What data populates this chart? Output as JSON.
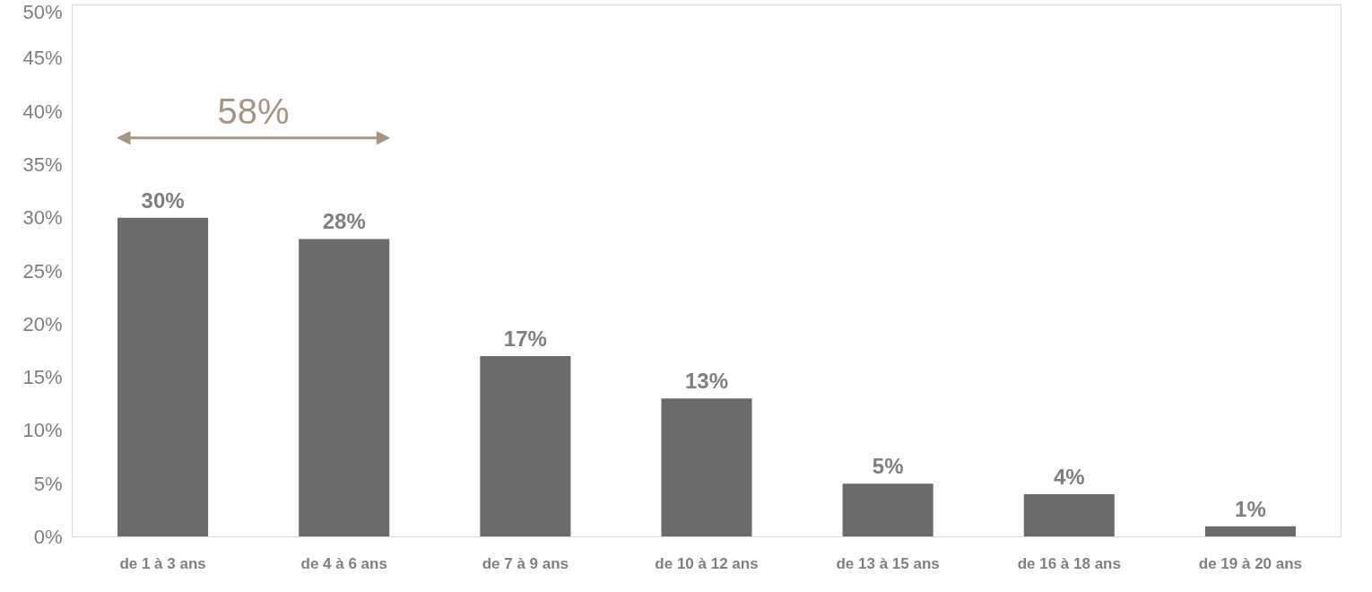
{
  "chart_data": {
    "type": "bar",
    "categories": [
      "de 1 à 3 ans",
      "de 4 à 6 ans",
      "de 7 à 9 ans",
      "de 10 à 12 ans",
      "de 13 à 15 ans",
      "de 16 à 18 ans",
      "de 19 à 20 ans"
    ],
    "values": [
      30,
      28,
      17,
      13,
      5,
      4,
      1
    ],
    "color": "#6b6b6b",
    "data_labels": true,
    "value_labels": [
      "30%",
      "28%",
      "17%",
      "13%",
      "5%",
      "4%",
      "1%"
    ],
    "ylim": [
      0,
      50
    ],
    "yticks": [
      {
        "value": 0,
        "label": "0%"
      },
      {
        "value": 5,
        "label": "5%"
      },
      {
        "value": 10,
        "label": "10%"
      },
      {
        "value": 15,
        "label": "15%"
      },
      {
        "value": 20,
        "label": "20%"
      },
      {
        "value": 25,
        "label": "25%"
      },
      {
        "value": 30,
        "label": "30%"
      },
      {
        "value": 35,
        "label": "35%"
      },
      {
        "value": 40,
        "label": "40%"
      },
      {
        "value": 45,
        "label": "45%"
      },
      {
        "value": 50,
        "label": "50%"
      }
    ],
    "grid": false,
    "annotations": [
      "58%"
    ]
  }
}
